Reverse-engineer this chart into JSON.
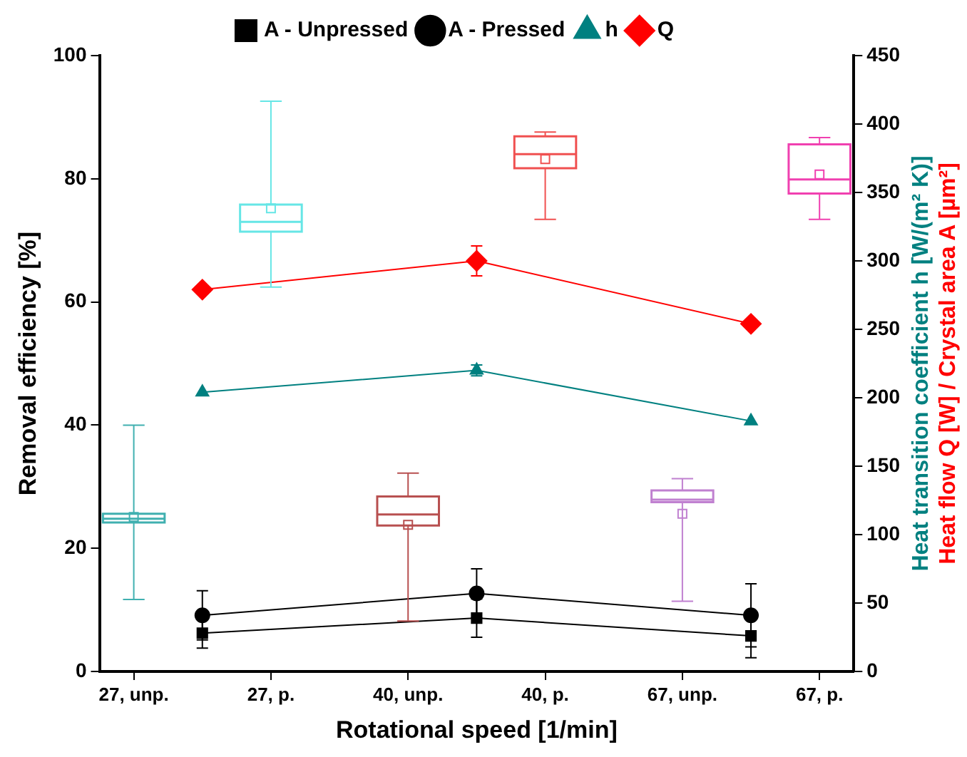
{
  "chart_data": {
    "type": "line",
    "xlabel": "Rotational speed [1/min]",
    "ylabel": "Removal efficiency [%]",
    "y2label": [
      "Heat transition coefficient h [W/(m² K)]",
      "Heat flow Q [W] / Crystal area A [µm²]"
    ],
    "categories": [
      "27, unp.",
      null,
      "27, p.",
      null,
      "40, unp.",
      null,
      "40, p.",
      null,
      "67, unp.",
      null,
      "67, p."
    ],
    "ylim": [
      0,
      100
    ],
    "yticks": [
      0,
      20,
      40,
      60,
      80,
      100
    ],
    "y2lim": [
      0,
      450
    ],
    "y2ticks": [
      0,
      50,
      100,
      150,
      200,
      250,
      300,
      350,
      400,
      450
    ],
    "legend": "top",
    "series": [
      {
        "type": "box",
        "colors": [
          "#40b0b0",
          null,
          "#66e6e6",
          null,
          "#b85050",
          null,
          "#f05050",
          null,
          "#c080d0",
          null,
          "#f040b0"
        ],
        "boxes": [
          {
            "low": 11.7,
            "q1": 24.2,
            "median": 24.8,
            "q3": 25.6,
            "high": 40,
            "mean": 25.1
          },
          null,
          {
            "low": 62.4,
            "q1": 71.4,
            "median": 73,
            "q3": 75.8,
            "high": 92.6,
            "mean": 75.2
          },
          null,
          {
            "low": 8.2,
            "q1": 23.7,
            "median": 25.5,
            "q3": 28.4,
            "high": 32.2,
            "mean": 23.8
          },
          null,
          {
            "low": 73.4,
            "q1": 81.7,
            "median": 84,
            "q3": 86.9,
            "high": 87.6,
            "mean": 83.2
          },
          null,
          {
            "low": 11.4,
            "q1": 27.5,
            "median": 27.9,
            "q3": 29.4,
            "high": 31.3,
            "mean": 25.6
          },
          null,
          {
            "low": 73.4,
            "q1": 77.6,
            "median": 79.9,
            "q3": 85.6,
            "high": 86.7,
            "mean": 80.7
          }
        ]
      },
      {
        "name": "A - Unpressed",
        "axis": "y2",
        "color": "#000000",
        "marker": "square",
        "values": [
          null,
          28,
          null,
          null,
          null,
          39,
          null,
          null,
          null,
          26,
          null
        ],
        "errors": [
          null,
          11,
          null,
          null,
          null,
          14,
          null,
          null,
          null,
          16,
          null
        ]
      },
      {
        "name": "A - Pressed",
        "axis": "y2",
        "color": "#000000",
        "marker": "circle",
        "values": [
          null,
          41,
          null,
          null,
          null,
          57,
          null,
          null,
          null,
          41,
          null
        ],
        "errors": [
          null,
          18,
          null,
          null,
          null,
          18,
          null,
          null,
          null,
          23,
          null
        ]
      },
      {
        "name": "h",
        "axis": "y2",
        "color": "#008080",
        "marker": "triangle",
        "values": [
          null,
          204,
          null,
          null,
          null,
          220,
          null,
          null,
          null,
          183,
          null
        ],
        "errors": [
          null,
          null,
          null,
          null,
          null,
          4,
          null,
          null,
          null,
          null,
          null
        ]
      },
      {
        "name": "Q",
        "axis": "y2",
        "color": "#ff0000",
        "marker": "diamond",
        "values": [
          null,
          279,
          null,
          null,
          null,
          300,
          null,
          null,
          null,
          254,
          null
        ],
        "errors": [
          null,
          null,
          null,
          null,
          null,
          11,
          null,
          null,
          null,
          null,
          null
        ]
      }
    ]
  }
}
